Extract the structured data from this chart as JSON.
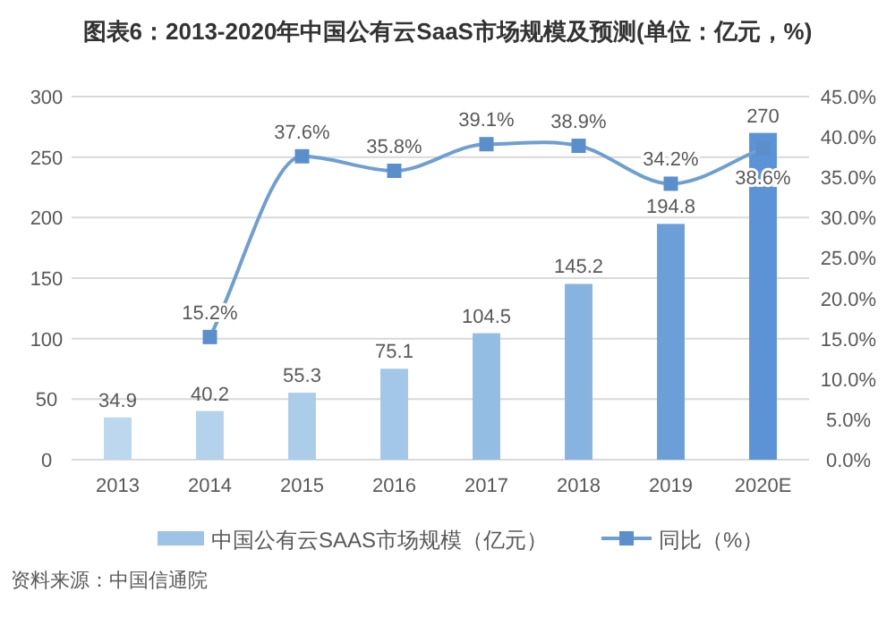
{
  "chart_data": {
    "type": "bar",
    "title": "图表6：2013-2020年中国公有云SaaS市场规模及预测(单位：亿元，%)",
    "categories": [
      "2013",
      "2014",
      "2015",
      "2016",
      "2017",
      "2018",
      "2019",
      "2020E"
    ],
    "series": [
      {
        "name": "中国公有云SAAS市场规模（亿元）",
        "color": "#9dc3e6",
        "colors": [
          "#bdd7ee",
          "#b4d2ec",
          "#abcdea",
          "#a2c7e8",
          "#94bde4",
          "#86b3e0",
          "#6a9fd8",
          "#5b93d6"
        ],
        "values": [
          34.9,
          40.2,
          55.3,
          75.1,
          104.5,
          145.2,
          194.8,
          270
        ],
        "value_labels": [
          "34.9",
          "40.2",
          "55.3",
          "75.1",
          "104.5",
          "145.2",
          "194.8",
          "270"
        ]
      },
      {
        "name": "同比（%）",
        "type": "line",
        "axis": "y2",
        "color": "#6f9fd0",
        "marker": "square",
        "values": [
          null,
          15.2,
          37.6,
          35.8,
          39.1,
          38.9,
          34.2,
          38.6
        ],
        "value_labels": [
          null,
          "15.2%",
          "37.6%",
          "35.8%",
          "39.1%",
          "38.9%",
          "34.2%",
          "38.6%"
        ]
      }
    ],
    "ylim": [
      0,
      300
    ],
    "yticks": [
      0,
      50,
      100,
      150,
      200,
      250,
      300
    ],
    "y2lim": [
      0,
      45
    ],
    "y2ticks": [
      {
        "value": 0,
        "label": "0.0%"
      },
      {
        "value": 5,
        "label": "5.0%"
      },
      {
        "value": 10,
        "label": "10.0%"
      },
      {
        "value": 15,
        "label": "15.0%"
      },
      {
        "value": 20,
        "label": "20.0%"
      },
      {
        "value": 25,
        "label": "25.0%"
      },
      {
        "value": 30,
        "label": "30.0%"
      },
      {
        "value": 35,
        "label": "35.0%"
      },
      {
        "value": 40,
        "label": "40.0%"
      },
      {
        "value": 45,
        "label": "45.0%"
      }
    ],
    "grid": "y",
    "legend": "bottom",
    "annotations": [
      "资料来源：中国信通院"
    ]
  }
}
